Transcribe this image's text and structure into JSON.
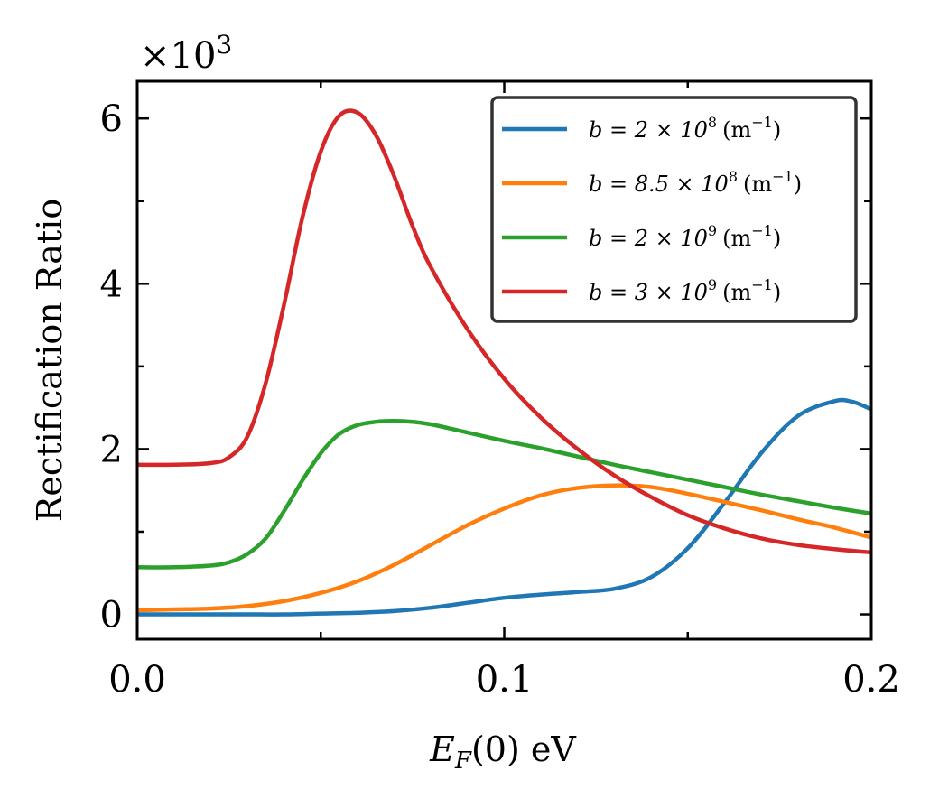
{
  "chart_data": {
    "type": "line",
    "title": "",
    "xlabel": "E_F(0) eV",
    "xlabel_main": "E",
    "xlabel_sub": "F",
    "xlabel_rest": "(0) eV",
    "ylabel": "Rectification Ratio",
    "y_multiplier_base": "×10",
    "y_multiplier_exp": "3",
    "xlim": [
      0.0,
      0.2
    ],
    "ylim": [
      -0.3,
      6.45
    ],
    "x_ticks": [
      0.0,
      0.05,
      0.1,
      0.15,
      0.2
    ],
    "x_tick_labels": [
      "0.0",
      "",
      "0.1",
      "",
      "0.2"
    ],
    "y_ticks": [
      0,
      1,
      2,
      3,
      4,
      5,
      6
    ],
    "y_tick_labels": [
      "0",
      "",
      "2",
      "",
      "4",
      "",
      "6"
    ],
    "legend_position": "top-right",
    "series": [
      {
        "name": "b = 2 × 10^8 (m^-1)",
        "label_base": "b = 2 × 10",
        "label_exp": "8",
        "label_unit": "(m",
        "label_unit_exp": "−1",
        "label_close": ")",
        "color": "#1f77b4",
        "x": [
          0,
          0.01,
          0.02,
          0.03,
          0.04,
          0.05,
          0.06,
          0.07,
          0.08,
          0.09,
          0.1,
          0.11,
          0.12,
          0.13,
          0.14,
          0.15,
          0.16,
          0.17,
          0.18,
          0.19,
          0.195,
          0.2
        ],
        "y": [
          0.0,
          0.0,
          0.0,
          0.0,
          0.0,
          0.01,
          0.02,
          0.04,
          0.08,
          0.14,
          0.2,
          0.24,
          0.27,
          0.31,
          0.45,
          0.8,
          1.35,
          1.95,
          2.4,
          2.58,
          2.57,
          2.48
        ]
      },
      {
        "name": "b = 8.5 × 10^8 (m^-1)",
        "label_base": "b = 8.5 × 10",
        "label_exp": "8",
        "label_unit": "(m",
        "label_unit_exp": "−1",
        "label_close": ")",
        "color": "#ff7f0e",
        "x": [
          0,
          0.01,
          0.02,
          0.03,
          0.04,
          0.05,
          0.06,
          0.07,
          0.08,
          0.09,
          0.1,
          0.11,
          0.12,
          0.13,
          0.14,
          0.15,
          0.16,
          0.17,
          0.18,
          0.19,
          0.2
        ],
        "y": [
          0.05,
          0.06,
          0.07,
          0.1,
          0.16,
          0.26,
          0.4,
          0.6,
          0.84,
          1.08,
          1.28,
          1.44,
          1.53,
          1.56,
          1.54,
          1.46,
          1.36,
          1.26,
          1.15,
          1.05,
          0.93
        ]
      },
      {
        "name": "b = 2 × 10^9 (m^-1)",
        "label_base": "b = 2 × 10",
        "label_exp": "9",
        "label_unit": "(m",
        "label_unit_exp": "−1",
        "label_close": ")",
        "color": "#2ca02c",
        "x": [
          0,
          0.01,
          0.02,
          0.025,
          0.03,
          0.035,
          0.04,
          0.045,
          0.05,
          0.055,
          0.06,
          0.065,
          0.07,
          0.075,
          0.08,
          0.09,
          0.1,
          0.11,
          0.12,
          0.13,
          0.14,
          0.15,
          0.16,
          0.17,
          0.18,
          0.19,
          0.2
        ],
        "y": [
          0.57,
          0.57,
          0.59,
          0.63,
          0.73,
          0.92,
          1.25,
          1.62,
          1.95,
          2.18,
          2.29,
          2.33,
          2.34,
          2.33,
          2.3,
          2.2,
          2.1,
          2.01,
          1.91,
          1.81,
          1.72,
          1.63,
          1.54,
          1.45,
          1.37,
          1.29,
          1.22
        ]
      },
      {
        "name": "b = 3 × 10^9 (m^-1)",
        "label_base": "b = 3 × 10",
        "label_exp": "9",
        "label_unit": "(m",
        "label_unit_exp": "−1",
        "label_close": ")",
        "color": "#d62728",
        "x": [
          0,
          0.01,
          0.02,
          0.025,
          0.03,
          0.035,
          0.04,
          0.045,
          0.05,
          0.055,
          0.06,
          0.065,
          0.07,
          0.075,
          0.08,
          0.09,
          0.1,
          0.11,
          0.12,
          0.13,
          0.14,
          0.15,
          0.16,
          0.17,
          0.18,
          0.19,
          0.2
        ],
        "y": [
          1.81,
          1.81,
          1.83,
          1.9,
          2.15,
          2.8,
          3.75,
          4.8,
          5.6,
          6.03,
          6.07,
          5.8,
          5.3,
          4.7,
          4.2,
          3.45,
          2.85,
          2.38,
          2.0,
          1.68,
          1.42,
          1.2,
          1.04,
          0.92,
          0.84,
          0.79,
          0.75
        ]
      }
    ]
  }
}
